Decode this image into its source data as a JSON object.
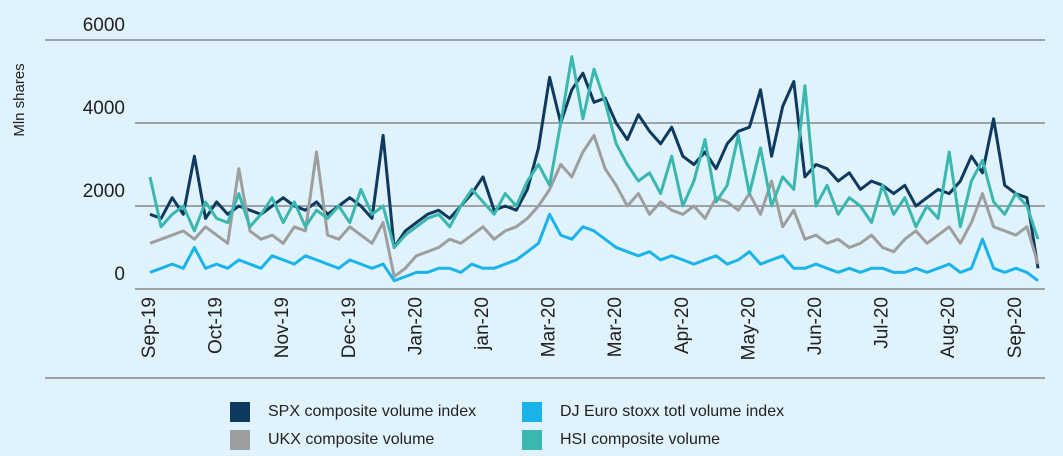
{
  "chart_data": {
    "type": "line",
    "y_label": "Mln shares",
    "categories": [
      "Sep-19",
      null,
      null,
      null,
      null,
      null,
      "Oct-19",
      null,
      null,
      null,
      null,
      null,
      "Nov-19",
      null,
      null,
      null,
      null,
      null,
      "Dec-19",
      null,
      null,
      null,
      null,
      null,
      "Jan-20",
      null,
      null,
      null,
      null,
      null,
      "jan-20",
      null,
      null,
      null,
      null,
      null,
      "Mar-20",
      null,
      null,
      null,
      null,
      null,
      "Mar-20",
      null,
      null,
      null,
      null,
      null,
      "Apr-20",
      null,
      null,
      null,
      null,
      null,
      "May-20",
      null,
      null,
      null,
      null,
      null,
      "Jun-20",
      null,
      null,
      null,
      null,
      null,
      "Jul-20",
      null,
      null,
      null,
      null,
      null,
      "Aug-20",
      null,
      null,
      null,
      null,
      null,
      "Sep-20",
      null,
      null
    ],
    "ylim": [
      0,
      6000
    ],
    "yticks": [
      0,
      2000,
      4000,
      6000
    ],
    "grid": true,
    "legend": "bottom",
    "series": [
      {
        "name": "SPX composite volume index",
        "color": "#0e3a5e",
        "values": [
          1800,
          1700,
          2200,
          1800,
          3200,
          1700,
          2100,
          1800,
          2000,
          1900,
          1800,
          2000,
          2200,
          2000,
          1900,
          2100,
          1800,
          2000,
          2200,
          2000,
          1700,
          3700,
          1000,
          1400,
          1600,
          1800,
          1900,
          1700,
          2000,
          2300,
          2700,
          1900,
          2000,
          1900,
          2400,
          3400,
          5100,
          4000,
          4800,
          5200,
          4500,
          4600,
          4000,
          3600,
          4200,
          3800,
          3500,
          3900,
          3200,
          3000,
          3300,
          2900,
          3500,
          3800,
          3900,
          4800,
          3200,
          4400,
          5000,
          2700,
          3000,
          2900,
          2600,
          2800,
          2400,
          2600,
          2500,
          2300,
          2500,
          2000,
          2200,
          2400,
          2300,
          2600,
          3200,
          2800,
          4100,
          2500,
          2300,
          2200,
          500
        ]
      },
      {
        "name": "DJ Euro stoxx totl volume index",
        "color": "#1ab4ea",
        "values": [
          400,
          500,
          600,
          500,
          1000,
          500,
          600,
          500,
          700,
          600,
          500,
          800,
          700,
          600,
          800,
          700,
          600,
          500,
          700,
          600,
          500,
          600,
          200,
          300,
          400,
          400,
          500,
          500,
          400,
          600,
          500,
          500,
          600,
          700,
          900,
          1100,
          1800,
          1300,
          1200,
          1500,
          1400,
          1200,
          1000,
          900,
          800,
          900,
          700,
          800,
          700,
          600,
          700,
          800,
          600,
          700,
          900,
          600,
          700,
          800,
          500,
          500,
          600,
          500,
          400,
          500,
          400,
          500,
          500,
          400,
          400,
          500,
          400,
          500,
          600,
          400,
          500,
          1200,
          500,
          400,
          500,
          400,
          200
        ]
      },
      {
        "name": "UKX composite volume",
        "color": "#9e9e9e",
        "values": [
          1100,
          1200,
          1300,
          1400,
          1200,
          1500,
          1300,
          1100,
          2900,
          1400,
          1200,
          1300,
          1100,
          1500,
          1400,
          3300,
          1300,
          1200,
          1500,
          1300,
          1100,
          1600,
          300,
          500,
          800,
          900,
          1000,
          1200,
          1100,
          1300,
          1500,
          1200,
          1400,
          1500,
          1700,
          2000,
          2400,
          3000,
          2700,
          3300,
          3700,
          2900,
          2500,
          2000,
          2300,
          1800,
          2100,
          1900,
          1800,
          2000,
          1700,
          2200,
          2100,
          1900,
          2300,
          1800,
          2600,
          1500,
          1900,
          1200,
          1300,
          1100,
          1200,
          1000,
          1100,
          1300,
          1000,
          900,
          1200,
          1400,
          1100,
          1300,
          1500,
          1100,
          1600,
          2300,
          1500,
          1400,
          1300,
          1500,
          600
        ]
      },
      {
        "name": "HSI composite volume",
        "color": "#3ab7ae",
        "values": [
          2700,
          1500,
          1800,
          2000,
          1400,
          2100,
          1700,
          1600,
          2300,
          1500,
          1800,
          2200,
          1600,
          2100,
          1500,
          1900,
          1700,
          2000,
          1600,
          2400,
          1800,
          2000,
          1000,
          1300,
          1500,
          1700,
          1800,
          1500,
          2000,
          2400,
          2100,
          1800,
          2300,
          2000,
          2600,
          3000,
          2500,
          4000,
          5600,
          4100,
          5300,
          4500,
          3500,
          3000,
          2600,
          2800,
          2300,
          3200,
          2000,
          2600,
          3600,
          2100,
          2500,
          3700,
          2300,
          3400,
          2000,
          2700,
          2400,
          4900,
          2000,
          2500,
          1800,
          2200,
          2000,
          1600,
          2500,
          1800,
          2200,
          1500,
          2000,
          1700,
          3300,
          1500,
          2600,
          3100,
          2100,
          1800,
          2300,
          2000,
          1200
        ]
      }
    ]
  }
}
